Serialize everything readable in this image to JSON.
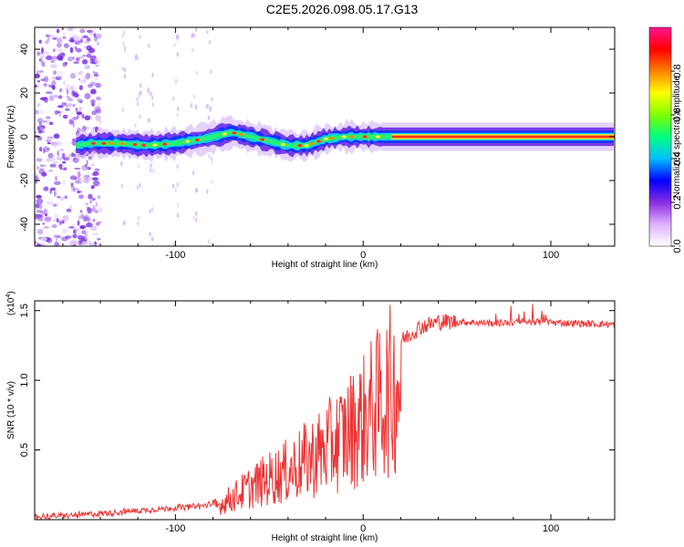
{
  "title": "C2E5.2026.098.05.17.G13",
  "chart_data": [
    {
      "type": "heatmap",
      "name": "spectrogram",
      "xlabel": "Height of straight line (km)",
      "ylabel": "Frequency (Hz)",
      "xlim": [
        -175,
        134
      ],
      "ylim": [
        -50,
        50
      ],
      "xticks": [
        -100,
        0,
        100
      ],
      "yticks": [
        -40,
        -20,
        0,
        20,
        40
      ],
      "ridge_x": [
        -153,
        -145,
        -130,
        -115,
        -100,
        -85,
        -75,
        -70,
        -65,
        -60,
        -50,
        -40,
        -30,
        -20,
        -10,
        0,
        10,
        20,
        134
      ],
      "ridge_y": [
        -4,
        -3,
        -3,
        -4,
        -3,
        -1,
        1,
        2,
        1,
        0,
        -2,
        -4,
        -4,
        -1,
        0,
        0,
        0,
        0,
        0
      ],
      "noise_region_x": [
        -175,
        -140
      ],
      "colorbar": {
        "label": "Normalized spectral amplitude",
        "ticks": [
          0.0,
          0.2,
          0.4,
          0.6,
          0.8
        ],
        "colors": [
          "#ffffff",
          "#e0b0ff",
          "#8a2be2",
          "#0000ff",
          "#00bfff",
          "#00ff80",
          "#7fff00",
          "#ffff00",
          "#ff8000",
          "#ff0000",
          "#ff1493"
        ]
      }
    },
    {
      "type": "line",
      "name": "snr",
      "xlabel": "Height of straight line (km)",
      "ylabel": "SNR (10 * v/v)",
      "y_multiplier": "(x10",
      "y_multiplier_exp": "4",
      "y_multiplier_close": ")",
      "xlim": [
        -175,
        134
      ],
      "ylim": [
        0,
        1.57
      ],
      "xticks": [
        -100,
        0,
        100
      ],
      "yticks": [
        0.5,
        1.0,
        1.5
      ],
      "color": "#ee3333",
      "envelope_x": [
        -175,
        -155,
        -135,
        -115,
        -95,
        -85,
        -78,
        -70,
        -60,
        -50,
        -40,
        -30,
        -20,
        -10,
        0,
        5,
        10,
        15,
        20,
        25,
        30,
        40,
        50,
        70,
        90,
        110,
        134
      ],
      "envelope_y": [
        0.02,
        0.03,
        0.05,
        0.07,
        0.09,
        0.1,
        0.12,
        0.2,
        0.3,
        0.38,
        0.45,
        0.55,
        0.65,
        0.78,
        0.92,
        1.02,
        1.1,
        1.2,
        1.28,
        1.33,
        1.38,
        1.42,
        1.42,
        1.41,
        1.42,
        1.41,
        1.4
      ]
    }
  ]
}
